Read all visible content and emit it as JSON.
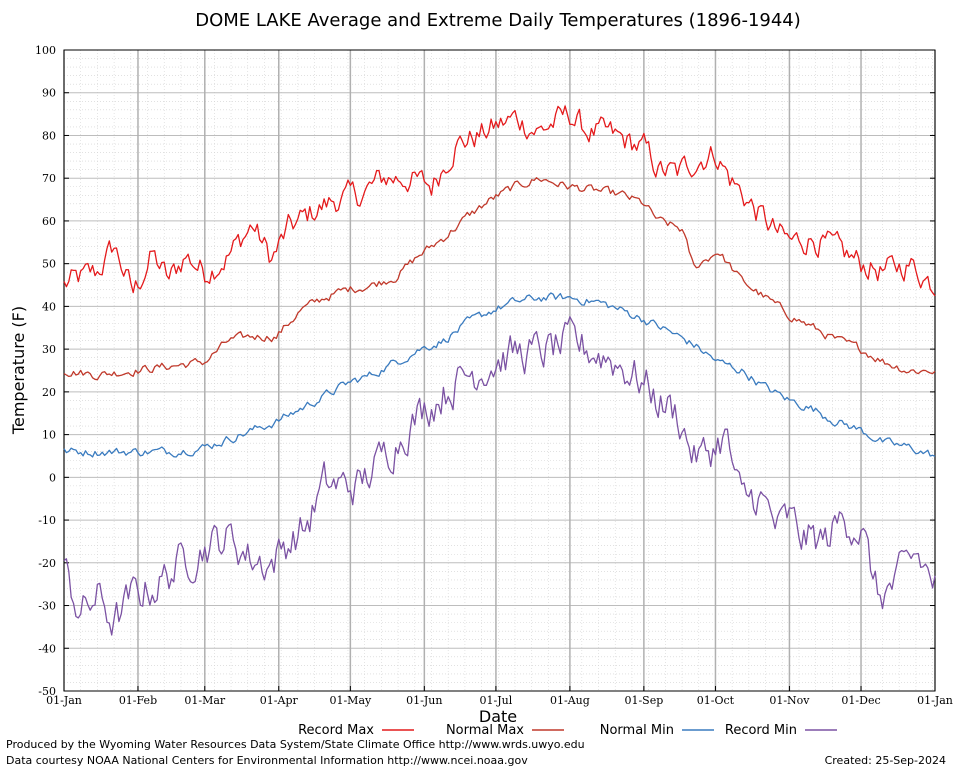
{
  "chart_data": {
    "type": "line",
    "title": "DOME LAKE Average and Extreme Daily Temperatures (1896-1944)",
    "xlabel": "Date",
    "ylabel": "Temperature (F)",
    "ylim": [
      -50,
      100
    ],
    "yticks": [
      100,
      90,
      80,
      70,
      60,
      50,
      40,
      30,
      20,
      10,
      0,
      -10,
      -20,
      -30,
      -40,
      -50
    ],
    "xlim": [
      1,
      366
    ],
    "xtick_days": [
      1,
      32,
      60,
      91,
      121,
      152,
      182,
      213,
      244,
      274,
      305,
      335,
      366
    ],
    "xtick_labels": [
      "01-Jan",
      "01-Feb",
      "01-Mar",
      "01-Apr",
      "01-May",
      "01-Jun",
      "01-Jul",
      "01-Aug",
      "01-Sep",
      "01-Oct",
      "01-Nov",
      "01-Dec",
      "01-Jan"
    ],
    "grid": true,
    "legend_position": "bottom",
    "series": [
      {
        "name": "Record Max",
        "color": "#e41a1c",
        "points": [
          [
            1,
            45
          ],
          [
            15,
            48
          ],
          [
            22,
            54
          ],
          [
            30,
            43
          ],
          [
            38,
            52
          ],
          [
            45,
            46
          ],
          [
            52,
            52
          ],
          [
            60,
            48
          ],
          [
            70,
            52
          ],
          [
            80,
            59
          ],
          [
            88,
            51
          ],
          [
            95,
            58
          ],
          [
            105,
            62
          ],
          [
            115,
            65
          ],
          [
            125,
            66
          ],
          [
            135,
            70
          ],
          [
            145,
            70
          ],
          [
            155,
            68
          ],
          [
            165,
            78
          ],
          [
            175,
            80
          ],
          [
            182,
            82
          ],
          [
            190,
            84
          ],
          [
            200,
            81
          ],
          [
            213,
            85
          ],
          [
            220,
            81
          ],
          [
            230,
            80
          ],
          [
            244,
            77
          ],
          [
            250,
            72
          ],
          [
            258,
            71
          ],
          [
            265,
            74
          ],
          [
            274,
            76
          ],
          [
            280,
            70
          ],
          [
            290,
            63
          ],
          [
            300,
            57
          ],
          [
            305,
            55
          ],
          [
            315,
            56
          ],
          [
            325,
            53
          ],
          [
            335,
            50
          ],
          [
            345,
            48
          ],
          [
            355,
            50
          ],
          [
            366,
            45
          ]
        ]
      },
      {
        "name": "Normal Max",
        "color": "#c0392b",
        "points": [
          [
            1,
            25
          ],
          [
            15,
            24
          ],
          [
            30,
            25
          ],
          [
            45,
            26
          ],
          [
            60,
            27
          ],
          [
            70,
            32
          ],
          [
            80,
            33
          ],
          [
            90,
            33
          ],
          [
            100,
            39
          ],
          [
            110,
            42
          ],
          [
            120,
            44
          ],
          [
            130,
            45
          ],
          [
            140,
            47
          ],
          [
            150,
            52
          ],
          [
            160,
            56
          ],
          [
            170,
            61
          ],
          [
            180,
            65
          ],
          [
            190,
            68
          ],
          [
            200,
            70
          ],
          [
            213,
            68
          ],
          [
            225,
            67
          ],
          [
            235,
            66
          ],
          [
            244,
            64
          ],
          [
            250,
            60
          ],
          [
            260,
            58
          ],
          [
            265,
            49
          ],
          [
            275,
            53
          ],
          [
            285,
            46
          ],
          [
            295,
            42
          ],
          [
            305,
            38
          ],
          [
            315,
            35
          ],
          [
            325,
            32
          ],
          [
            335,
            30
          ],
          [
            345,
            27
          ],
          [
            355,
            25
          ],
          [
            366,
            25
          ]
        ]
      },
      {
        "name": "Normal Min",
        "color": "#3a7bbf",
        "points": [
          [
            1,
            6
          ],
          [
            15,
            6
          ],
          [
            30,
            6
          ],
          [
            45,
            6
          ],
          [
            60,
            7
          ],
          [
            70,
            9
          ],
          [
            80,
            11
          ],
          [
            90,
            13
          ],
          [
            100,
            16
          ],
          [
            110,
            19
          ],
          [
            120,
            22
          ],
          [
            130,
            24
          ],
          [
            140,
            27
          ],
          [
            150,
            30
          ],
          [
            160,
            32
          ],
          [
            170,
            36
          ],
          [
            180,
            39
          ],
          [
            190,
            41
          ],
          [
            200,
            42
          ],
          [
            213,
            42
          ],
          [
            225,
            41
          ],
          [
            235,
            39
          ],
          [
            244,
            37
          ],
          [
            255,
            34
          ],
          [
            265,
            31
          ],
          [
            275,
            27
          ],
          [
            285,
            25
          ],
          [
            295,
            21
          ],
          [
            305,
            18
          ],
          [
            315,
            16
          ],
          [
            325,
            13
          ],
          [
            335,
            11
          ],
          [
            345,
            8
          ],
          [
            355,
            7
          ],
          [
            366,
            5
          ]
        ]
      },
      {
        "name": "Record Min",
        "color": "#7b52a3",
        "points": [
          [
            1,
            -22
          ],
          [
            8,
            -32
          ],
          [
            15,
            -28
          ],
          [
            22,
            -34
          ],
          [
            30,
            -28
          ],
          [
            40,
            -25
          ],
          [
            50,
            -20
          ],
          [
            60,
            -16
          ],
          [
            70,
            -14
          ],
          [
            80,
            -19
          ],
          [
            88,
            -20
          ],
          [
            95,
            -15
          ],
          [
            102,
            -12
          ],
          [
            110,
            -2
          ],
          [
            118,
            -2
          ],
          [
            125,
            -2
          ],
          [
            135,
            5
          ],
          [
            145,
            12
          ],
          [
            152,
            16
          ],
          [
            160,
            20
          ],
          [
            170,
            24
          ],
          [
            180,
            27
          ],
          [
            190,
            29
          ],
          [
            200,
            29
          ],
          [
            213,
            31
          ],
          [
            220,
            30
          ],
          [
            230,
            28
          ],
          [
            240,
            24
          ],
          [
            244,
            22
          ],
          [
            250,
            18
          ],
          [
            258,
            15
          ],
          [
            265,
            5
          ],
          [
            270,
            5
          ],
          [
            278,
            10
          ],
          [
            285,
            -6
          ],
          [
            292,
            -4
          ],
          [
            300,
            -12
          ],
          [
            305,
            -10
          ],
          [
            310,
            -14
          ],
          [
            320,
            -15
          ],
          [
            328,
            -9
          ],
          [
            335,
            -12
          ],
          [
            342,
            -28
          ],
          [
            350,
            -25
          ],
          [
            358,
            -18
          ],
          [
            366,
            -25
          ]
        ]
      }
    ]
  },
  "legend": {
    "record_max": "Record Max",
    "normal_max": "Normal Max",
    "normal_min": "Normal Min",
    "record_min": "Record Min"
  },
  "footer": {
    "produced_by": "Produced by the Wyoming Water Resources Data System/State Climate Office http://www.wrds.uwyo.edu",
    "courtesy": "Data courtesy NOAA National Centers for Environmental Information http://www.ncei.noaa.gov",
    "created": "Created:  25-Sep-2024"
  }
}
